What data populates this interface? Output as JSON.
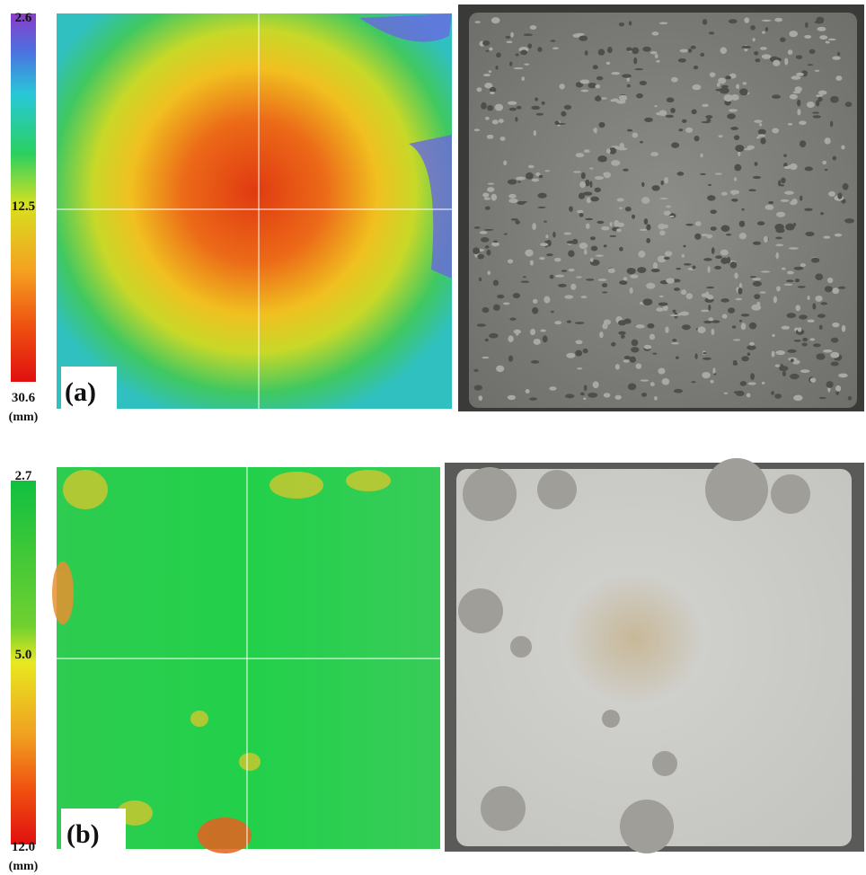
{
  "panels": [
    {
      "label": "(a)",
      "colorbar": {
        "top": "2.6",
        "middle": "12.5",
        "bottom": "30.6",
        "unit": "(mm)"
      }
    },
    {
      "label": "(b)",
      "colorbar": {
        "top": "2.7",
        "middle": "5.0",
        "bottom": "12.0",
        "unit": "(mm)"
      }
    }
  ]
}
